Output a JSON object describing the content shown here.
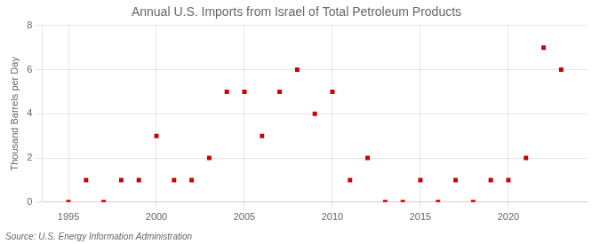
{
  "chart_data": {
    "type": "scatter",
    "title": "Annual U.S. Imports from Israel of Total Petroleum Products",
    "ylabel": "Thousand Barrels per Day",
    "source": "Source: U.S. Energy Information Administration",
    "x": [
      1995,
      1996,
      1997,
      1998,
      1999,
      2000,
      2001,
      2002,
      2003,
      2004,
      2005,
      2006,
      2007,
      2008,
      2009,
      2010,
      2011,
      2012,
      2013,
      2014,
      2015,
      2016,
      2017,
      2018,
      2019,
      2020,
      2021,
      2022,
      2023
    ],
    "values": [
      0,
      1,
      0,
      1,
      1,
      3,
      1,
      1,
      2,
      5,
      5,
      3,
      5,
      6,
      4,
      5,
      1,
      2,
      0,
      0,
      1,
      0,
      1,
      0,
      1,
      1,
      2,
      7,
      6
    ],
    "color": "#cc0000",
    "marker": "square",
    "xlim": [
      1993.5,
      2024.5
    ],
    "xticks": [
      1995,
      2000,
      2005,
      2010,
      2015,
      2020
    ],
    "ylim": [
      0,
      8
    ],
    "yticks": [
      0,
      2,
      4,
      6,
      8
    ],
    "grid": true
  }
}
